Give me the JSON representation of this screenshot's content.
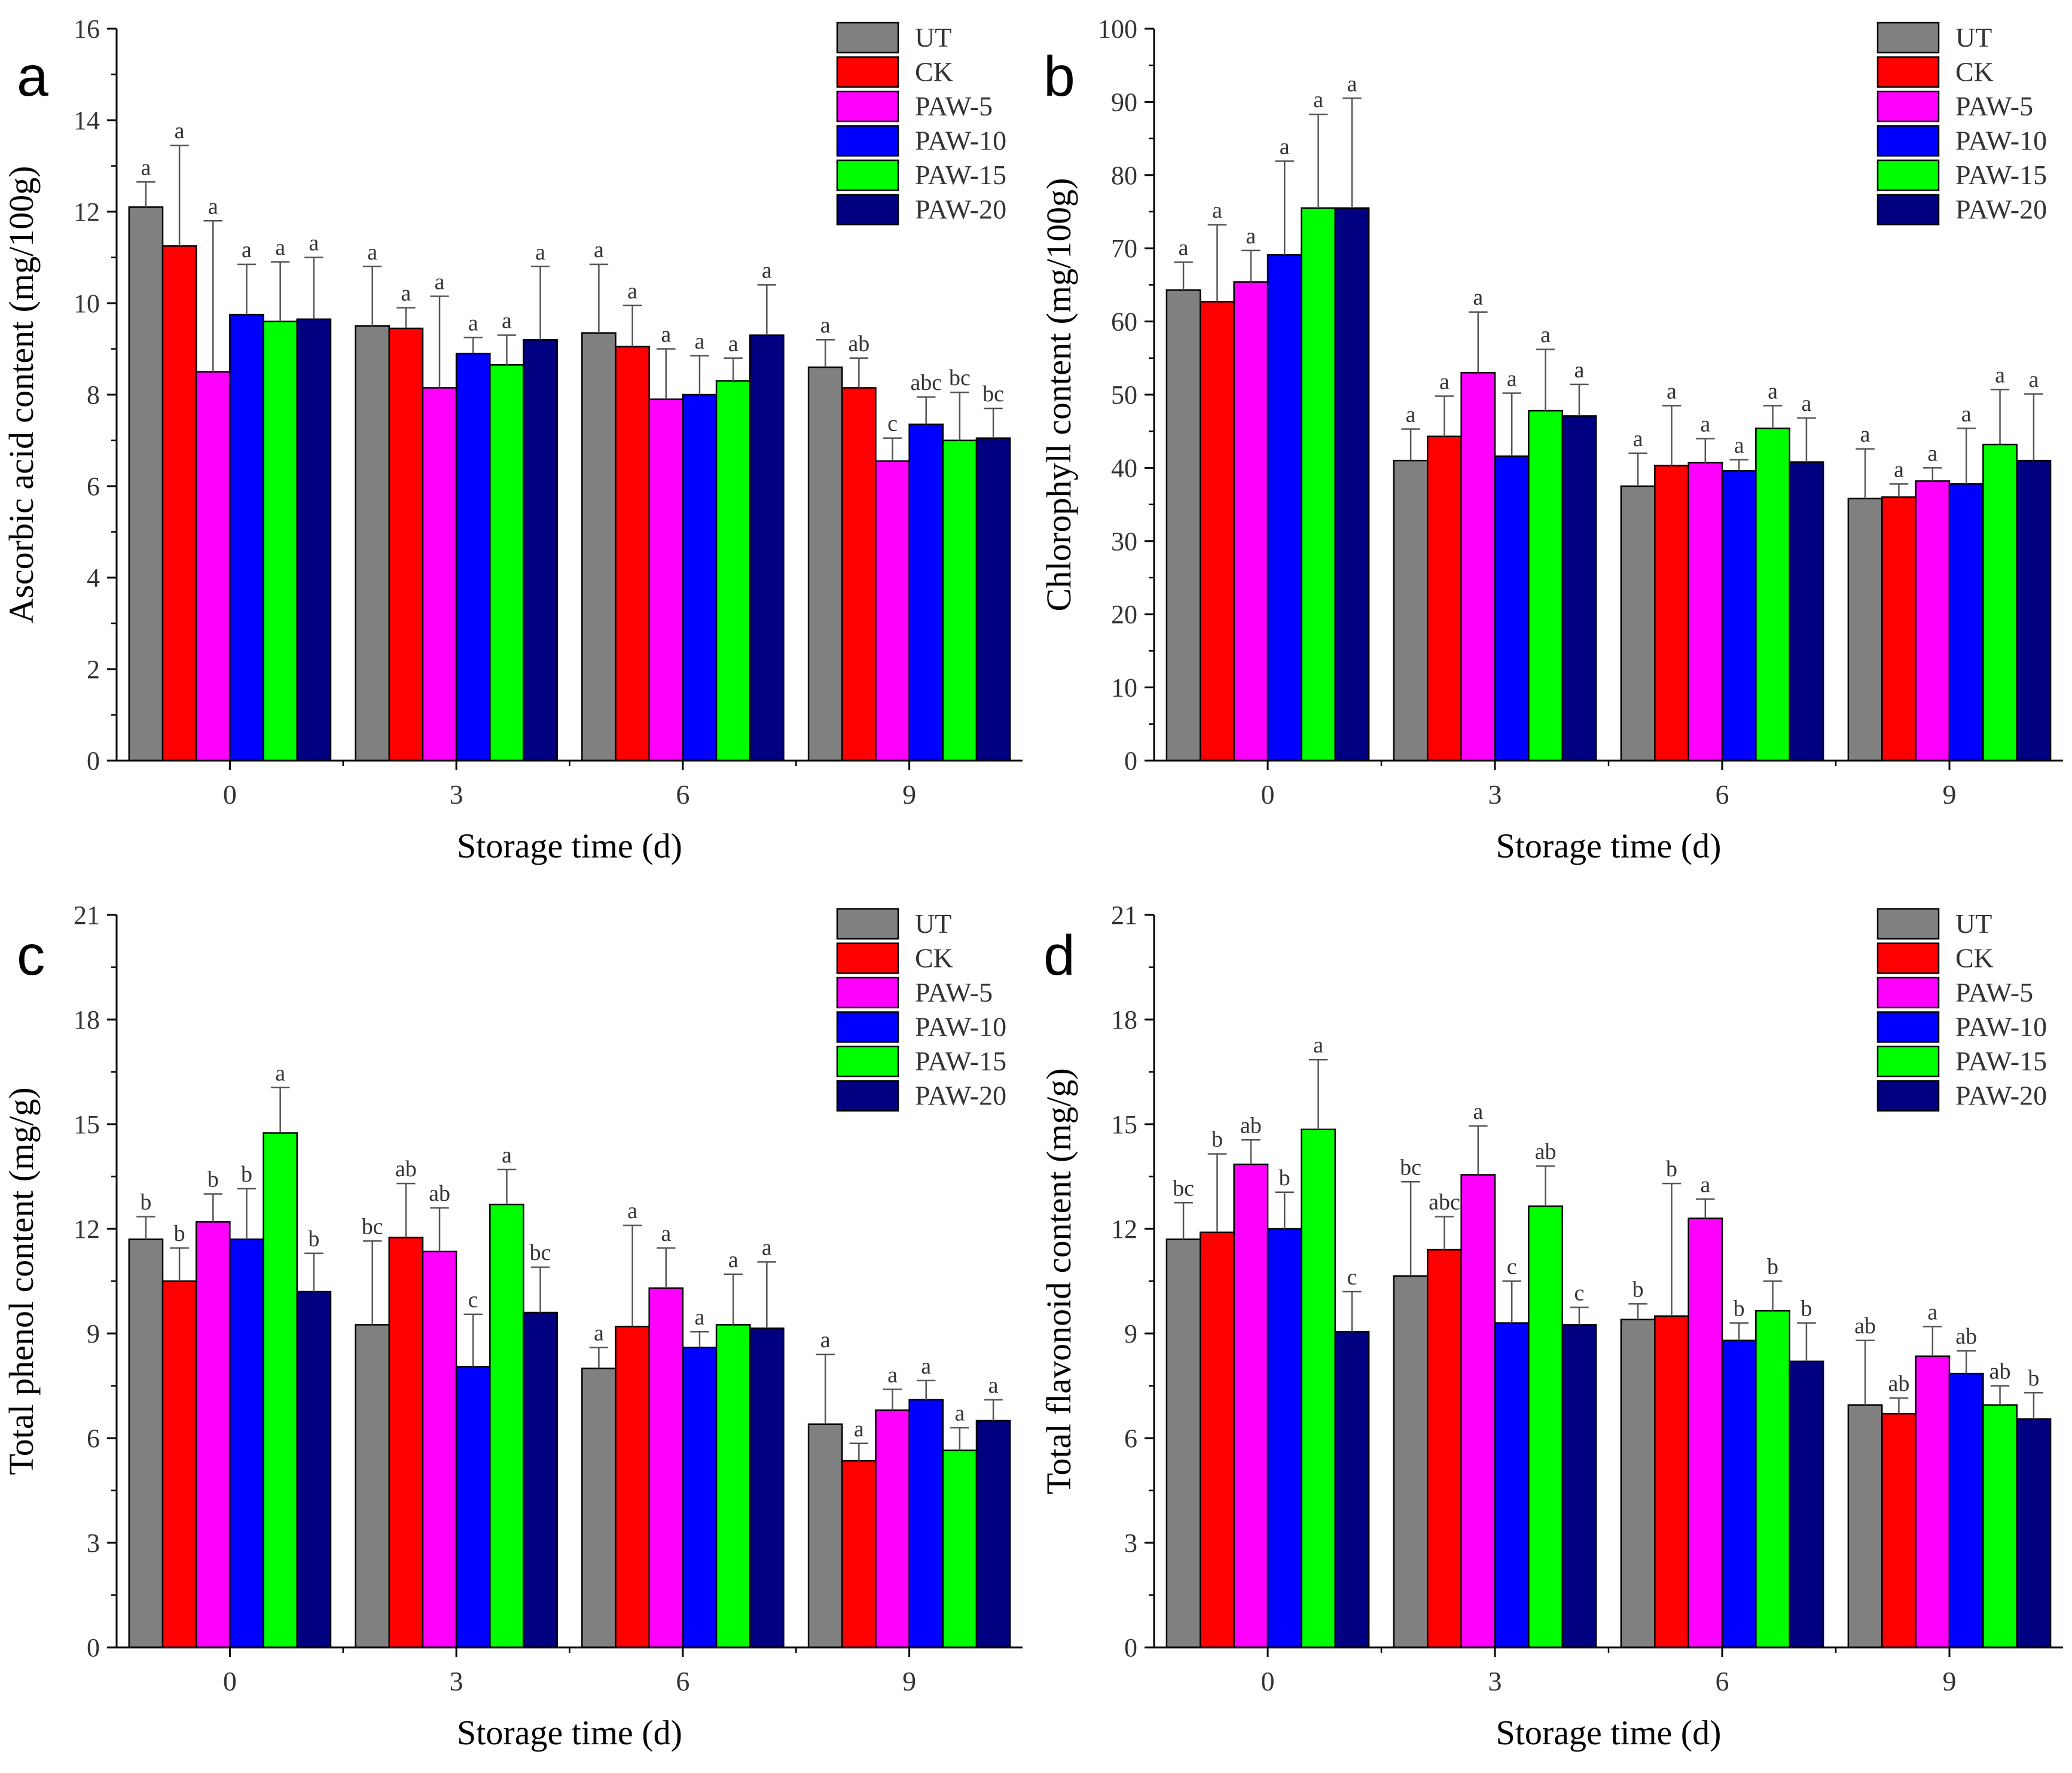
{
  "chart_data": [
    {
      "type": "bar",
      "panel": "a",
      "ylabel": "Ascorbic acid content (mg/100g)",
      "xlabel": "Storage time (d)",
      "ylim": [
        0,
        16
      ],
      "yticks": [
        0,
        2,
        4,
        6,
        8,
        10,
        12,
        14,
        16
      ],
      "y_tick_labels": [
        "0",
        "2",
        "4",
        "6",
        "8",
        "10",
        "12",
        "14",
        "16"
      ],
      "categories": [
        "0",
        "3",
        "6",
        "9"
      ],
      "legend_position": "top-right",
      "series": [
        {
          "name": "UT",
          "values": [
            12.1,
            9.5,
            9.35,
            8.6
          ],
          "errors": [
            0.55,
            1.3,
            1.5,
            0.6
          ],
          "labels": [
            "a",
            "a",
            "a",
            "a"
          ]
        },
        {
          "name": "CK",
          "values": [
            11.25,
            9.45,
            9.05,
            8.15
          ],
          "errors": [
            2.2,
            0.45,
            0.9,
            0.65
          ],
          "labels": [
            "a",
            "a",
            "a",
            "ab"
          ]
        },
        {
          "name": "PAW-5",
          "values": [
            8.5,
            8.15,
            7.9,
            6.55
          ],
          "errors": [
            3.3,
            2.0,
            1.1,
            0.5
          ],
          "labels": [
            "a",
            "a",
            "a",
            "c"
          ]
        },
        {
          "name": "PAW-10",
          "values": [
            9.75,
            8.9,
            8.0,
            7.35
          ],
          "errors": [
            1.1,
            0.35,
            0.85,
            0.6
          ],
          "labels": [
            "a",
            "a",
            "a",
            "abc"
          ]
        },
        {
          "name": "PAW-15",
          "values": [
            9.6,
            8.65,
            8.3,
            7.0
          ],
          "errors": [
            1.3,
            0.65,
            0.5,
            1.05
          ],
          "labels": [
            "a",
            "a",
            "a",
            "bc"
          ]
        },
        {
          "name": "PAW-20",
          "values": [
            9.65,
            9.2,
            9.3,
            7.05
          ],
          "errors": [
            1.35,
            1.6,
            1.1,
            0.65
          ],
          "labels": [
            "a",
            "a",
            "a",
            "bc"
          ]
        }
      ]
    },
    {
      "type": "bar",
      "panel": "b",
      "ylabel": "Chlorophyll content (mg/100g)",
      "xlabel": "Storage time (d)",
      "ylim": [
        0,
        100
      ],
      "yticks": [
        0,
        10,
        20,
        30,
        40,
        50,
        60,
        70,
        80,
        90,
        100
      ],
      "y_tick_labels": [
        "0",
        "10",
        "20",
        "30",
        "40",
        "50",
        "60",
        "70",
        "80",
        "90",
        "100"
      ],
      "categories": [
        "0",
        "3",
        "6",
        "9"
      ],
      "legend_position": "top-right",
      "series": [
        {
          "name": "UT",
          "values": [
            64.3,
            41.0,
            37.5,
            35.8
          ],
          "errors": [
            3.8,
            4.3,
            4.5,
            6.8
          ],
          "labels": [
            "a",
            "a",
            "a",
            "a"
          ]
        },
        {
          "name": "CK",
          "values": [
            62.7,
            44.3,
            40.3,
            36.0
          ],
          "errors": [
            10.5,
            5.5,
            8.2,
            1.8
          ],
          "labels": [
            "a",
            "a",
            "a",
            "a"
          ]
        },
        {
          "name": "PAW-5",
          "values": [
            65.4,
            53.0,
            40.7,
            38.2
          ],
          "errors": [
            4.3,
            8.3,
            3.3,
            1.8
          ],
          "labels": [
            "a",
            "a",
            "a",
            "a"
          ]
        },
        {
          "name": "PAW-10",
          "values": [
            69.1,
            41.6,
            39.6,
            37.8
          ],
          "errors": [
            12.8,
            8.6,
            1.5,
            7.6
          ],
          "labels": [
            "a",
            "a",
            "a",
            "a"
          ]
        },
        {
          "name": "PAW-15",
          "values": [
            75.5,
            47.8,
            45.4,
            43.2
          ],
          "errors": [
            12.8,
            8.4,
            3.1,
            7.5
          ],
          "labels": [
            "a",
            "a",
            "a",
            "a"
          ]
        },
        {
          "name": "PAW-20",
          "values": [
            75.5,
            47.1,
            40.8,
            41.0
          ],
          "errors": [
            15.0,
            4.3,
            6.0,
            9.1
          ],
          "labels": [
            "a",
            "a",
            "a",
            "a"
          ]
        }
      ]
    },
    {
      "type": "bar",
      "panel": "c",
      "ylabel": "Total phenol content (mg/g)",
      "xlabel": "Storage time (d)",
      "ylim": [
        0,
        21
      ],
      "yticks": [
        0,
        3,
        6,
        9,
        12,
        15,
        18,
        21
      ],
      "y_tick_labels": [
        "0",
        "3",
        "6",
        "9",
        "12",
        "15",
        "18",
        "21"
      ],
      "categories": [
        "0",
        "3",
        "6",
        "9"
      ],
      "legend_position": "top-right",
      "series": [
        {
          "name": "UT",
          "values": [
            11.7,
            9.25,
            8.0,
            6.4
          ],
          "errors": [
            0.65,
            2.4,
            0.6,
            2.0
          ],
          "labels": [
            "b",
            "bc",
            "a",
            "a"
          ]
        },
        {
          "name": "CK",
          "values": [
            10.5,
            11.75,
            9.2,
            5.35
          ],
          "errors": [
            0.95,
            1.55,
            2.9,
            0.5
          ],
          "labels": [
            "b",
            "ab",
            "a",
            "a"
          ]
        },
        {
          "name": "PAW-5",
          "values": [
            12.2,
            11.35,
            10.3,
            6.8
          ],
          "errors": [
            0.8,
            1.25,
            1.15,
            0.6
          ],
          "labels": [
            "b",
            "ab",
            "a",
            "a"
          ]
        },
        {
          "name": "PAW-10",
          "values": [
            11.7,
            8.05,
            8.6,
            7.1
          ],
          "errors": [
            1.45,
            1.5,
            0.45,
            0.55
          ],
          "labels": [
            "b",
            "c",
            "a",
            "a"
          ]
        },
        {
          "name": "PAW-15",
          "values": [
            14.75,
            12.7,
            9.25,
            5.65
          ],
          "errors": [
            1.3,
            1.0,
            1.45,
            0.65
          ],
          "labels": [
            "a",
            "a",
            "a",
            "a"
          ]
        },
        {
          "name": "PAW-20",
          "values": [
            10.2,
            9.6,
            9.15,
            6.5
          ],
          "errors": [
            1.1,
            1.3,
            1.9,
            0.6
          ],
          "labels": [
            "b",
            "bc",
            "a",
            "a"
          ]
        }
      ]
    },
    {
      "type": "bar",
      "panel": "d",
      "ylabel": "Total flavonoid content (mg/g)",
      "xlabel": "Storage time (d)",
      "ylim": [
        0,
        21
      ],
      "yticks": [
        0,
        3,
        6,
        9,
        12,
        15,
        18,
        21
      ],
      "y_tick_labels": [
        "0",
        "3",
        "6",
        "9",
        "12",
        "15",
        "18",
        "21"
      ],
      "categories": [
        "0",
        "3",
        "6",
        "9"
      ],
      "legend_position": "top-right",
      "series": [
        {
          "name": "UT",
          "values": [
            11.7,
            10.65,
            9.4,
            6.95
          ],
          "errors": [
            1.05,
            2.7,
            0.45,
            1.85
          ],
          "labels": [
            "bc",
            "bc",
            "b",
            "ab"
          ]
        },
        {
          "name": "CK",
          "values": [
            11.9,
            11.4,
            9.5,
            6.7
          ],
          "errors": [
            2.25,
            0.95,
            3.8,
            0.45
          ],
          "labels": [
            "b",
            "abc",
            "b",
            "ab"
          ]
        },
        {
          "name": "PAW-5",
          "values": [
            13.85,
            13.55,
            12.3,
            8.35
          ],
          "errors": [
            0.7,
            1.4,
            0.55,
            0.85
          ],
          "labels": [
            "ab",
            "a",
            "a",
            "a"
          ]
        },
        {
          "name": "PAW-10",
          "values": [
            12.0,
            9.3,
            8.8,
            7.85
          ],
          "errors": [
            1.05,
            1.2,
            0.5,
            0.65
          ],
          "labels": [
            "b",
            "c",
            "b",
            "ab"
          ]
        },
        {
          "name": "PAW-15",
          "values": [
            14.85,
            12.65,
            9.65,
            6.95
          ],
          "errors": [
            2.0,
            1.15,
            0.85,
            0.55
          ],
          "labels": [
            "a",
            "ab",
            "b",
            "ab"
          ]
        },
        {
          "name": "PAW-20",
          "values": [
            9.05,
            9.25,
            8.2,
            6.55
          ],
          "errors": [
            1.15,
            0.5,
            1.1,
            0.75
          ],
          "labels": [
            "c",
            "c",
            "b",
            "b"
          ]
        }
      ]
    }
  ],
  "colors": [
    "#808080",
    "#ff0000",
    "#ff00ff",
    "#0000ff",
    "#00ff00",
    "#000080"
  ]
}
